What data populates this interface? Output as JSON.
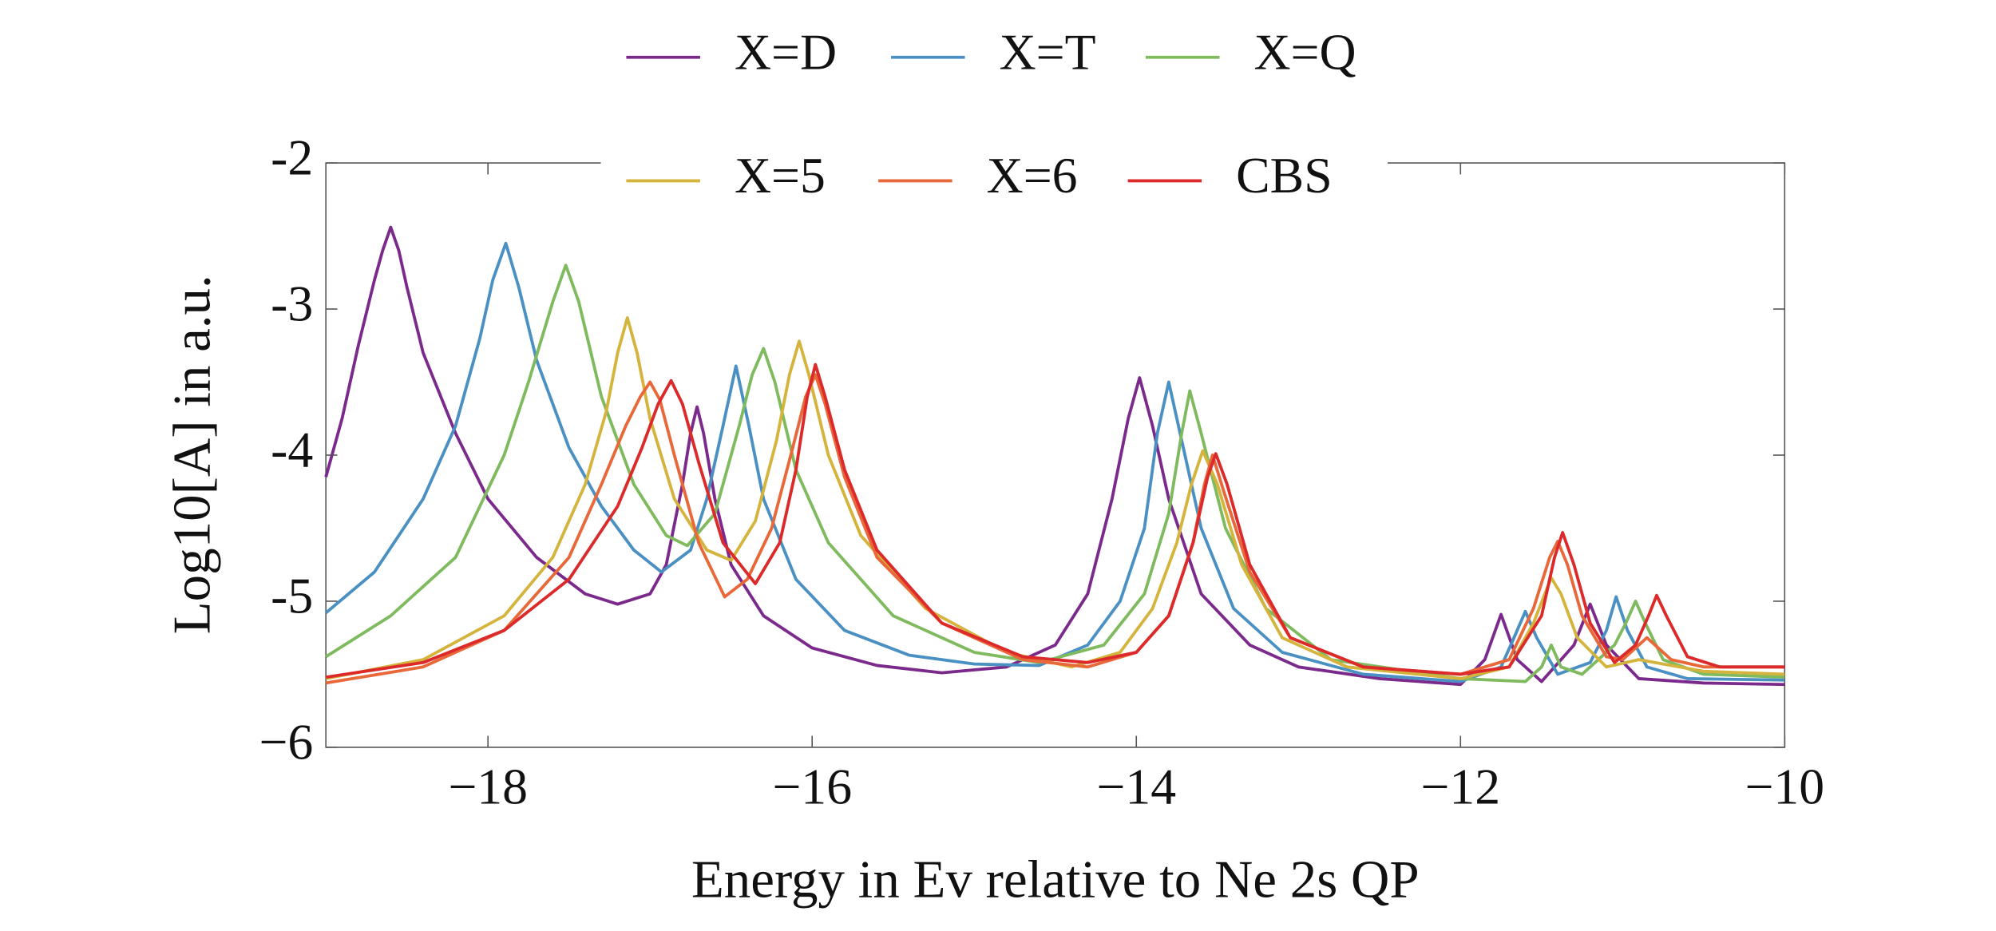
{
  "chart_data": {
    "type": "line",
    "xlabel": "Energy in Ev relative to Ne 2s QP",
    "ylabel": "Log10[A] in a.u.",
    "xlim": [
      -19,
      -10
    ],
    "ylim": [
      -6,
      -2
    ],
    "xticks": [
      {
        "value": -18,
        "label": "−18"
      },
      {
        "value": -16,
        "label": "−16"
      },
      {
        "value": -14,
        "label": "−14"
      },
      {
        "value": -12,
        "label": "−12"
      },
      {
        "value": -10,
        "label": "−10"
      }
    ],
    "yticks": [
      {
        "value": -6,
        "label": "−6"
      },
      {
        "value": -5,
        "label": "-5"
      },
      {
        "value": -4,
        "label": "-4"
      },
      {
        "value": -3,
        "label": "-3"
      },
      {
        "value": -2,
        "label": "-2"
      }
    ],
    "legend": "top",
    "series": [
      {
        "name": "X=D",
        "color": "#7b2a8c",
        "x": [
          -19,
          -18.9,
          -18.8,
          -18.7,
          -18.65,
          -18.6,
          -18.55,
          -18.5,
          -18.4,
          -18.2,
          -18,
          -17.7,
          -17.4,
          -17.2,
          -17,
          -16.9,
          -16.8,
          -16.75,
          -16.71,
          -16.67,
          -16.6,
          -16.5,
          -16.3,
          -16,
          -15.6,
          -15.2,
          -14.8,
          -14.5,
          -14.3,
          -14.15,
          -14.05,
          -13.98,
          -13.9,
          -13.8,
          -13.6,
          -13.3,
          -13,
          -12.5,
          -12,
          -11.85,
          -11.75,
          -11.65,
          -11.5,
          -11.3,
          -11.2,
          -11.1,
          -10.9,
          -10.5,
          -10
        ],
        "values": [
          -4.15,
          -3.75,
          -3.25,
          -2.8,
          -2.6,
          -2.44,
          -2.6,
          -2.85,
          -3.3,
          -3.85,
          -4.3,
          -4.7,
          -4.95,
          -5.02,
          -4.95,
          -4.75,
          -4.2,
          -3.85,
          -3.67,
          -3.85,
          -4.3,
          -4.75,
          -5.1,
          -5.32,
          -5.44,
          -5.49,
          -5.45,
          -5.3,
          -4.95,
          -4.3,
          -3.75,
          -3.47,
          -3.8,
          -4.3,
          -4.95,
          -5.3,
          -5.45,
          -5.53,
          -5.57,
          -5.4,
          -5.09,
          -5.4,
          -5.55,
          -5.3,
          -5.02,
          -5.3,
          -5.53,
          -5.56,
          -5.57
        ]
      },
      {
        "name": "X=T",
        "color": "#4a90c2",
        "x": [
          -19,
          -18.7,
          -18.4,
          -18.2,
          -18.05,
          -17.97,
          -17.89,
          -17.81,
          -17.7,
          -17.5,
          -17.3,
          -17.1,
          -16.93,
          -16.75,
          -16.65,
          -16.55,
          -16.47,
          -16.39,
          -16.3,
          -16.1,
          -15.8,
          -15.4,
          -15,
          -14.6,
          -14.3,
          -14.1,
          -13.95,
          -13.87,
          -13.8,
          -13.73,
          -13.6,
          -13.4,
          -13.1,
          -12.6,
          -12,
          -11.75,
          -11.67,
          -11.6,
          -11.53,
          -11.4,
          -11.2,
          -11.1,
          -11.04,
          -10.97,
          -10.85,
          -10.6,
          -10
        ],
        "values": [
          -5.08,
          -4.8,
          -4.3,
          -3.8,
          -3.2,
          -2.8,
          -2.55,
          -2.85,
          -3.35,
          -3.95,
          -4.35,
          -4.65,
          -4.8,
          -4.65,
          -4.3,
          -3.8,
          -3.39,
          -3.8,
          -4.3,
          -4.85,
          -5.2,
          -5.37,
          -5.43,
          -5.44,
          -5.3,
          -5.0,
          -4.5,
          -3.85,
          -3.5,
          -3.85,
          -4.5,
          -5.05,
          -5.35,
          -5.5,
          -5.55,
          -5.45,
          -5.25,
          -5.07,
          -5.25,
          -5.5,
          -5.42,
          -5.2,
          -4.97,
          -5.2,
          -5.45,
          -5.53,
          -5.54
        ]
      },
      {
        "name": "X=Q",
        "color": "#7fba5e",
        "x": [
          -19,
          -18.6,
          -18.2,
          -17.9,
          -17.75,
          -17.6,
          -17.52,
          -17.44,
          -17.3,
          -17.1,
          -16.9,
          -16.77,
          -16.6,
          -16.45,
          -16.37,
          -16.3,
          -16.23,
          -16.1,
          -15.9,
          -15.5,
          -15,
          -14.6,
          -14.2,
          -13.95,
          -13.8,
          -13.72,
          -13.67,
          -13.6,
          -13.45,
          -13.2,
          -12.8,
          -12,
          -11.6,
          -11.5,
          -11.44,
          -11.38,
          -11.25,
          -11.05,
          -10.98,
          -10.92,
          -10.86,
          -10.75,
          -10.5,
          -10
        ],
        "values": [
          -5.38,
          -5.1,
          -4.7,
          -4.0,
          -3.5,
          -2.95,
          -2.7,
          -2.95,
          -3.6,
          -4.2,
          -4.55,
          -4.62,
          -4.4,
          -3.8,
          -3.45,
          -3.27,
          -3.5,
          -4.1,
          -4.6,
          -5.1,
          -5.35,
          -5.42,
          -5.3,
          -4.95,
          -4.4,
          -3.85,
          -3.56,
          -3.85,
          -4.5,
          -5.05,
          -5.4,
          -5.53,
          -5.55,
          -5.45,
          -5.3,
          -5.45,
          -5.5,
          -5.3,
          -5.15,
          -5.0,
          -5.15,
          -5.4,
          -5.5,
          -5.52
        ]
      },
      {
        "name": "X=5",
        "color": "#d4b43c",
        "x": [
          -19,
          -18.4,
          -17.9,
          -17.6,
          -17.4,
          -17.27,
          -17.2,
          -17.14,
          -17.08,
          -17,
          -16.85,
          -16.65,
          -16.5,
          -16.35,
          -16.22,
          -16.14,
          -16.08,
          -16.02,
          -15.9,
          -15.7,
          -15.3,
          -14.8,
          -14.4,
          -14.1,
          -13.9,
          -13.75,
          -13.66,
          -13.59,
          -13.5,
          -13.35,
          -13.1,
          -12.7,
          -12,
          -11.7,
          -11.55,
          -11.48,
          -11.44,
          -11.38,
          -11.28,
          -11.1,
          -10.9,
          -10.5,
          -10
        ],
        "values": [
          -5.53,
          -5.4,
          -5.1,
          -4.7,
          -4.2,
          -3.7,
          -3.3,
          -3.06,
          -3.3,
          -3.75,
          -4.3,
          -4.65,
          -4.72,
          -4.45,
          -3.9,
          -3.45,
          -3.22,
          -3.45,
          -4.0,
          -4.55,
          -5.05,
          -5.35,
          -5.45,
          -5.35,
          -5.05,
          -4.6,
          -4.2,
          -3.97,
          -4.2,
          -4.75,
          -5.25,
          -5.45,
          -5.53,
          -5.45,
          -5.15,
          -4.95,
          -4.84,
          -4.95,
          -5.25,
          -5.45,
          -5.4,
          -5.48,
          -5.5
        ]
      },
      {
        "name": "X=6",
        "color": "#e8683a",
        "x": [
          -19,
          -18.4,
          -17.9,
          -17.5,
          -17.3,
          -17.15,
          -17.06,
          -17,
          -16.94,
          -16.85,
          -16.7,
          -16.54,
          -16.4,
          -16.25,
          -16.12,
          -16.04,
          -15.98,
          -15.92,
          -15.8,
          -15.6,
          -15.2,
          -14.7,
          -14.3,
          -14,
          -13.8,
          -13.65,
          -13.58,
          -13.53,
          -13.46,
          -13.3,
          -13.05,
          -12.6,
          -12,
          -11.7,
          -11.55,
          -11.45,
          -11.4,
          -11.34,
          -11.25,
          -11.1,
          -11,
          -10.85,
          -10.7,
          -10.5,
          -10
        ],
        "values": [
          -5.56,
          -5.45,
          -5.2,
          -4.7,
          -4.2,
          -3.8,
          -3.6,
          -3.5,
          -3.62,
          -4.0,
          -4.6,
          -4.97,
          -4.85,
          -4.5,
          -3.95,
          -3.6,
          -3.45,
          -3.65,
          -4.15,
          -4.7,
          -5.15,
          -5.4,
          -5.45,
          -5.35,
          -5.1,
          -4.6,
          -4.2,
          -4.0,
          -4.25,
          -4.8,
          -5.25,
          -5.45,
          -5.5,
          -5.4,
          -5.05,
          -4.7,
          -4.59,
          -4.75,
          -5.1,
          -5.38,
          -5.4,
          -5.25,
          -5.4,
          -5.45,
          -5.45
        ]
      },
      {
        "name": "CBS",
        "color": "#dc2a2a",
        "x": [
          -19,
          -18.4,
          -17.9,
          -17.5,
          -17.2,
          -17.05,
          -16.95,
          -16.87,
          -16.8,
          -16.7,
          -16.55,
          -16.35,
          -16.2,
          -16.1,
          -16.03,
          -15.98,
          -15.92,
          -15.8,
          -15.6,
          -15.2,
          -14.7,
          -14.3,
          -14,
          -13.8,
          -13.65,
          -13.56,
          -13.51,
          -13.44,
          -13.3,
          -13.05,
          -12.6,
          -12,
          -11.7,
          -11.5,
          -11.42,
          -11.37,
          -11.3,
          -11.2,
          -11.05,
          -10.92,
          -10.84,
          -10.79,
          -10.73,
          -10.6,
          -10.4,
          -10
        ],
        "values": [
          -5.52,
          -5.42,
          -5.2,
          -4.85,
          -4.35,
          -3.95,
          -3.65,
          -3.49,
          -3.65,
          -4.05,
          -4.6,
          -4.88,
          -4.6,
          -4.1,
          -3.6,
          -3.38,
          -3.6,
          -4.1,
          -4.65,
          -5.15,
          -5.38,
          -5.42,
          -5.35,
          -5.1,
          -4.6,
          -4.15,
          -3.99,
          -4.2,
          -4.75,
          -5.25,
          -5.45,
          -5.5,
          -5.45,
          -5.1,
          -4.7,
          -4.53,
          -4.75,
          -5.15,
          -5.42,
          -5.3,
          -5.1,
          -4.96,
          -5.1,
          -5.38,
          -5.45,
          -5.45
        ]
      }
    ]
  }
}
